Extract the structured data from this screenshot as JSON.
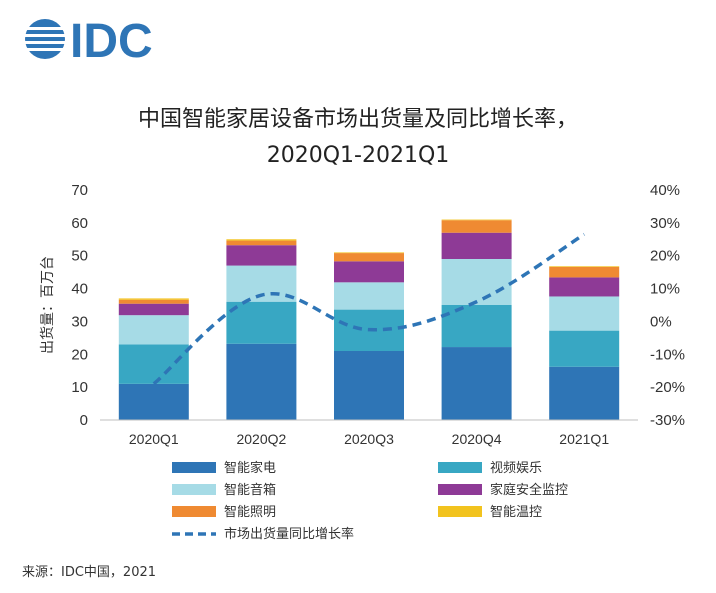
{
  "logo": {
    "text": "IDC"
  },
  "chart_data": {
    "type": "bar",
    "stacked": true,
    "title": "中国智能家居设备市场出货量及同比增长率，",
    "subtitle": "2020Q1-2021Q1",
    "ylabel": "出货量：百万台",
    "xlabel": "",
    "categories": [
      "2020Q1",
      "2020Q2",
      "2020Q3",
      "2020Q4",
      "2021Q1"
    ],
    "ylim": [
      0,
      70
    ],
    "yticks": [
      0,
      10,
      20,
      30,
      40,
      50,
      60,
      70
    ],
    "y2lim": [
      -30,
      40
    ],
    "y2ticks": [
      "40%",
      "30%",
      "20%",
      "10%",
      "0%",
      "-10%",
      "-20%",
      "-30%"
    ],
    "series": [
      {
        "name": "智能家电",
        "color": "#2e75b6",
        "values": [
          11,
          23.2,
          21,
          22.2,
          16.2
        ]
      },
      {
        "name": "视频娱乐",
        "color": "#38a7c3",
        "values": [
          12,
          12.8,
          12.6,
          12.8,
          11
        ]
      },
      {
        "name": "智能音箱",
        "color": "#a6dbe6",
        "values": [
          8.9,
          11,
          8.3,
          14,
          10.4
        ]
      },
      {
        "name": "家庭安全监控",
        "color": "#8e3a96",
        "values": [
          3.5,
          6.2,
          6.4,
          8,
          5.8
        ]
      },
      {
        "name": "智能照明",
        "color": "#ef8a32",
        "values": [
          1.2,
          1.4,
          2.5,
          3.8,
          3.2
        ]
      },
      {
        "name": "智能温控",
        "color": "#f2c31e",
        "values": [
          0.4,
          0.4,
          0.2,
          0.2,
          0.2
        ]
      }
    ],
    "line_series": {
      "name": "市场出货量同比增长率",
      "color": "#2e75b6",
      "values": [
        -19,
        8,
        -2.5,
        6,
        26.5
      ]
    },
    "legend": {
      "placement": "bottom",
      "columns": 2
    },
    "grid": false
  },
  "source": "来源：IDC中国，2021"
}
